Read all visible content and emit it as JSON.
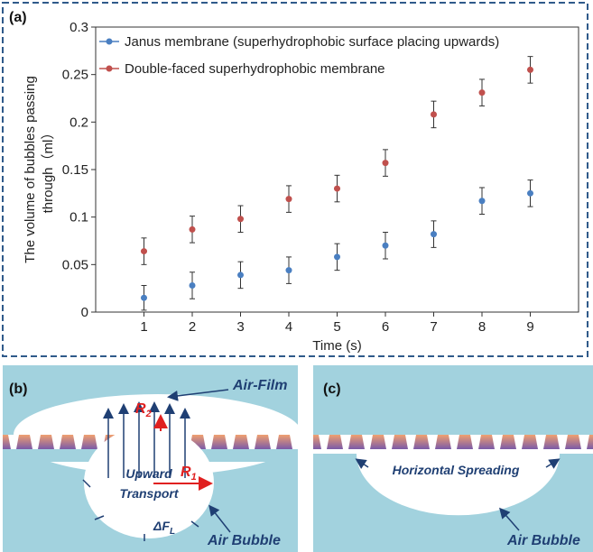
{
  "chart_data": {
    "type": "scatter",
    "panel_label": "(a)",
    "x_label": "Time (s)",
    "y_label": [
      "The volume of bubbles passing",
      "through（ml）"
    ],
    "x": [
      1,
      2,
      3,
      4,
      5,
      6,
      7,
      8,
      9
    ],
    "series": [
      {
        "name": "Janus membrane (superhydrophobic surface placing upwards)",
        "color": "#4a7fc1",
        "values": [
          0.015,
          0.028,
          0.039,
          0.044,
          0.058,
          0.07,
          0.082,
          0.117,
          0.125
        ],
        "errors": [
          0.013,
          0.014,
          0.014,
          0.014,
          0.014,
          0.014,
          0.014,
          0.014,
          0.014
        ]
      },
      {
        "name": "Double-faced superhydrophobic membrane",
        "color": "#c0504d",
        "values": [
          0.064,
          0.087,
          0.098,
          0.119,
          0.13,
          0.157,
          0.208,
          0.231,
          0.255
        ],
        "errors": [
          0.014,
          0.014,
          0.014,
          0.014,
          0.014,
          0.014,
          0.014,
          0.014,
          0.014
        ]
      }
    ],
    "xlim": [
      0,
      10
    ],
    "xticks": [
      1,
      2,
      3,
      4,
      5,
      6,
      7,
      8,
      9
    ],
    "ylim": [
      0,
      0.3
    ],
    "yticks": [
      0,
      0.05,
      0.1,
      0.15,
      0.2,
      0.25,
      0.3
    ],
    "legend": "upper-left",
    "grid": false
  },
  "panel_b": {
    "label": "(b)",
    "air_film": "Air-Film",
    "r2": {
      "symbol": "R",
      "sub": "2"
    },
    "r1": {
      "symbol": "R",
      "sub": "1"
    },
    "upward": "Upward",
    "transport": "Transport",
    "force": {
      "symbol": "ΔF",
      "sub": "L"
    },
    "air_bubble": "Air Bubble"
  },
  "panel_c": {
    "label": "(c)",
    "spreading": "Horizontal Spreading",
    "air_bubble": "Air Bubble"
  }
}
